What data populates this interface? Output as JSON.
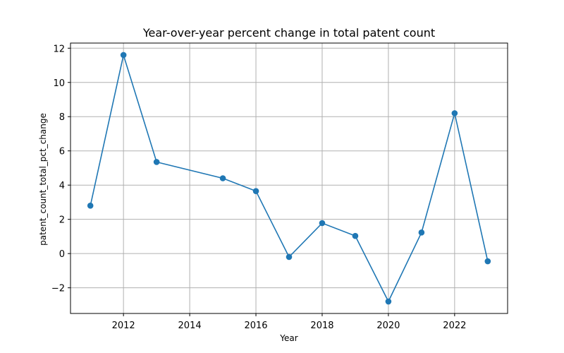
{
  "chart_data": {
    "type": "line",
    "title": "Year-over-year percent change in total patent count",
    "xlabel": "Year",
    "ylabel": "patent_count_total_pct_change",
    "x": [
      2011,
      2012,
      2013,
      2015,
      2016,
      2017,
      2018,
      2019,
      2020,
      2021,
      2022,
      2023
    ],
    "series": [
      {
        "values": [
          2.8,
          11.6,
          5.35,
          4.4,
          3.65,
          -0.2,
          1.78,
          1.03,
          -2.8,
          1.23,
          8.2,
          -0.45
        ],
        "color": "#1f77b4",
        "marker": "circle"
      }
    ],
    "xlim": [
      2010.4,
      2023.6
    ],
    "ylim": [
      -3.5,
      12.3
    ],
    "xticks": [
      2012,
      2014,
      2016,
      2018,
      2020,
      2022
    ],
    "yticks": [
      -2,
      0,
      2,
      4,
      6,
      8,
      10,
      12
    ],
    "ytick_labels": [
      "−2",
      "0",
      "2",
      "4",
      "6",
      "8",
      "10",
      "12"
    ],
    "grid": true,
    "colors": {
      "grid": "#b0b0b0",
      "axes": "#000000"
    }
  }
}
